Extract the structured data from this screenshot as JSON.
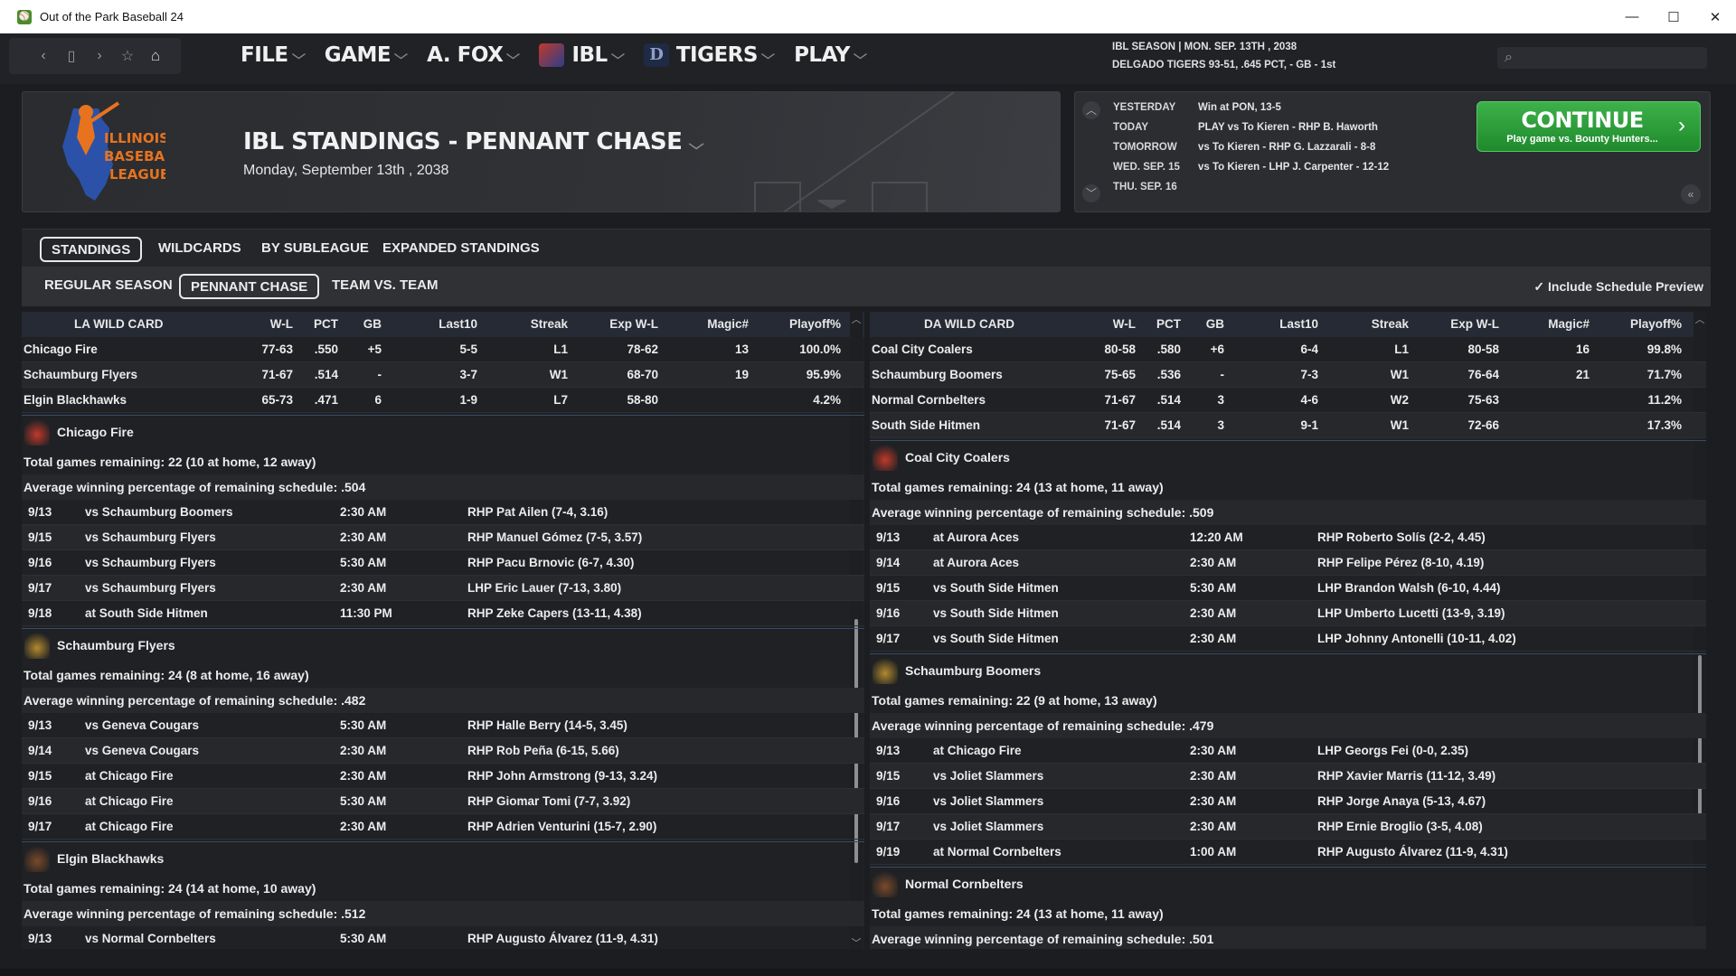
{
  "window": {
    "title": "Out of the Park Baseball 24",
    "min": "—",
    "max": "☐",
    "close": "✕"
  },
  "nav": {
    "menus": [
      {
        "label": "FILE"
      },
      {
        "label": "GAME"
      },
      {
        "label": "A. FOX"
      },
      {
        "label": "IBL"
      },
      {
        "label": "TIGERS"
      },
      {
        "label": "PLAY"
      }
    ],
    "season_line": "IBL SEASON  |  MON. SEP. 13TH , 2038",
    "team_line": "DELGADO TIGERS  93-51, .645 PCT, - GB - 1st",
    "search_placeholder": ""
  },
  "header": {
    "title": "IBL STANDINGS - PENNANT CHASE",
    "date": "Monday, September 13th , 2038",
    "logo_text": [
      "ILLINOIS",
      "BASEBALL",
      "LEAGUE"
    ]
  },
  "schedule": {
    "rows": [
      {
        "day": "YESTERDAY",
        "text": "Win at PON, 13-5"
      },
      {
        "day": "TODAY",
        "text": "PLAY vs To Kieren - RHP B. Haworth"
      },
      {
        "day": "TOMORROW",
        "text": "vs To Kieren - RHP G. Lazzarali - 8-8"
      },
      {
        "day": "WED. SEP. 15",
        "text": "vs To Kieren - LHP J. Carpenter - 12-12"
      },
      {
        "day": "THU. SEP. 16",
        "text": ""
      }
    ],
    "continue_label": "CONTINUE",
    "continue_sub": "Play game vs. Bounty Hunters..."
  },
  "tabs": {
    "primary": [
      "STANDINGS",
      "WILDCARDS",
      "BY SUBLEAGUE",
      "EXPANDED STANDINGS"
    ],
    "secondary": [
      "REGULAR SEASON",
      "PENNANT CHASE",
      "TEAM VS. TEAM"
    ],
    "include_preview": "Include Schedule Preview"
  },
  "columns": [
    "W-L",
    "PCT",
    "GB",
    "Last10",
    "Streak",
    "Exp W-L",
    "Magic#",
    "Playoff%"
  ],
  "left": {
    "title": "LA  WILD CARD",
    "teams": [
      {
        "name": "Chicago Fire",
        "wl": "77-63",
        "pct": ".550",
        "gb": "+5",
        "l10": "5-5",
        "streak": "L1",
        "exp": "78-62",
        "magic": "13",
        "po": "100.0%"
      },
      {
        "name": "Schaumburg Flyers",
        "wl": "71-67",
        "pct": ".514",
        "gb": "-",
        "l10": "3-7",
        "streak": "W1",
        "exp": "68-70",
        "magic": "19",
        "po": "95.9%"
      },
      {
        "name": "Elgin Blackhawks",
        "wl": "65-73",
        "pct": ".471",
        "gb": "6",
        "l10": "1-9",
        "streak": "L7",
        "exp": "58-80",
        "magic": "",
        "po": "4.2%"
      }
    ],
    "details": [
      {
        "team": "Chicago Fire",
        "remaining": "Total games remaining: 22 (10 at home, 12 away)",
        "avg": "Average winning percentage of remaining schedule: .504",
        "games": [
          {
            "date": "9/13",
            "opp": "vs Schaumburg Boomers",
            "time": "2:30 AM",
            "pitcher": "RHP Pat Ailen (7-4, 3.16)"
          },
          {
            "date": "9/15",
            "opp": "vs Schaumburg Flyers",
            "time": "2:30 AM",
            "pitcher": "RHP Manuel Gómez (7-5, 3.57)"
          },
          {
            "date": "9/16",
            "opp": "vs Schaumburg Flyers",
            "time": "5:30 AM",
            "pitcher": "RHP Pacu Brnovic (6-7, 4.30)"
          },
          {
            "date": "9/17",
            "opp": "vs Schaumburg Flyers",
            "time": "2:30 AM",
            "pitcher": "LHP Eric Lauer (7-13, 3.80)"
          },
          {
            "date": "9/18",
            "opp": "at South Side Hitmen",
            "time": "11:30 PM",
            "pitcher": "RHP Zeke Capers (13-11, 4.38)"
          }
        ]
      },
      {
        "team": "Schaumburg Flyers",
        "remaining": "Total games remaining: 24 (8 at home, 16 away)",
        "avg": "Average winning percentage of remaining schedule: .482",
        "games": [
          {
            "date": "9/13",
            "opp": "vs Geneva Cougars",
            "time": "5:30 AM",
            "pitcher": "RHP Halle Berry (14-5, 3.45)"
          },
          {
            "date": "9/14",
            "opp": "vs Geneva Cougars",
            "time": "2:30 AM",
            "pitcher": "RHP Rob Peña (6-15, 5.66)"
          },
          {
            "date": "9/15",
            "opp": "at Chicago Fire",
            "time": "2:30 AM",
            "pitcher": "RHP John Armstrong (9-13, 3.24)"
          },
          {
            "date": "9/16",
            "opp": "at Chicago Fire",
            "time": "5:30 AM",
            "pitcher": "RHP Giomar Tomi (7-7, 3.92)"
          },
          {
            "date": "9/17",
            "opp": "at Chicago Fire",
            "time": "2:30 AM",
            "pitcher": "RHP Adrien Venturini (15-7, 2.90)"
          }
        ]
      },
      {
        "team": "Elgin Blackhawks",
        "remaining": "Total games remaining: 24 (14 at home, 10 away)",
        "avg": "Average winning percentage of remaining schedule: .512",
        "games": [
          {
            "date": "9/13",
            "opp": "vs Normal Cornbelters",
            "time": "5:30 AM",
            "pitcher": "RHP Augusto Álvarez (11-9, 4.31)"
          }
        ]
      }
    ]
  },
  "right": {
    "title": "DA  WILD CARD",
    "teams": [
      {
        "name": "Coal City Coalers",
        "wl": "80-58",
        "pct": ".580",
        "gb": "+6",
        "l10": "6-4",
        "streak": "L1",
        "exp": "80-58",
        "magic": "16",
        "po": "99.8%"
      },
      {
        "name": "Schaumburg Boomers",
        "wl": "75-65",
        "pct": ".536",
        "gb": "-",
        "l10": "7-3",
        "streak": "W1",
        "exp": "76-64",
        "magic": "21",
        "po": "71.7%"
      },
      {
        "name": "Normal Cornbelters",
        "wl": "71-67",
        "pct": ".514",
        "gb": "3",
        "l10": "4-6",
        "streak": "W2",
        "exp": "75-63",
        "magic": "",
        "po": "11.2%"
      },
      {
        "name": "South Side Hitmen",
        "wl": "71-67",
        "pct": ".514",
        "gb": "3",
        "l10": "9-1",
        "streak": "W1",
        "exp": "72-66",
        "magic": "",
        "po": "17.3%"
      }
    ],
    "details": [
      {
        "team": "Coal City Coalers",
        "remaining": "Total games remaining: 24 (13 at home, 11 away)",
        "avg": "Average winning percentage of remaining schedule: .509",
        "games": [
          {
            "date": "9/13",
            "opp": "at Aurora Aces",
            "time": "12:20 AM",
            "pitcher": "RHP Roberto Solís (2-2, 4.45)"
          },
          {
            "date": "9/14",
            "opp": "at Aurora Aces",
            "time": "2:30 AM",
            "pitcher": "RHP Felipe Pérez (8-10, 4.19)"
          },
          {
            "date": "9/15",
            "opp": "vs South Side Hitmen",
            "time": "5:30 AM",
            "pitcher": "LHP Brandon Walsh (6-10, 4.44)"
          },
          {
            "date": "9/16",
            "opp": "vs South Side Hitmen",
            "time": "2:30 AM",
            "pitcher": "LHP Umberto Lucetti (13-9, 3.19)"
          },
          {
            "date": "9/17",
            "opp": "vs South Side Hitmen",
            "time": "2:30 AM",
            "pitcher": "LHP Johnny Antonelli (10-11, 4.02)"
          }
        ]
      },
      {
        "team": "Schaumburg Boomers",
        "remaining": "Total games remaining: 22 (9 at home, 13 away)",
        "avg": "Average winning percentage of remaining schedule: .479",
        "games": [
          {
            "date": "9/13",
            "opp": "at Chicago Fire",
            "time": "2:30 AM",
            "pitcher": "LHP Georgs Fei (0-0, 2.35)"
          },
          {
            "date": "9/15",
            "opp": "vs Joliet Slammers",
            "time": "2:30 AM",
            "pitcher": "RHP Xavier Marris (11-12, 3.49)"
          },
          {
            "date": "9/16",
            "opp": "vs Joliet Slammers",
            "time": "2:30 AM",
            "pitcher": "RHP Jorge Anaya (5-13, 4.67)"
          },
          {
            "date": "9/17",
            "opp": "vs Joliet Slammers",
            "time": "2:30 AM",
            "pitcher": "RHP Ernie Broglio (3-5, 4.08)"
          },
          {
            "date": "9/19",
            "opp": "at Normal Cornbelters",
            "time": "1:00 AM",
            "pitcher": "RHP Augusto Álvarez (11-9, 4.31)"
          }
        ]
      },
      {
        "team": "Normal Cornbelters",
        "remaining": "Total games remaining: 24 (13 at home, 11 away)",
        "avg": "Average winning percentage of remaining schedule: .501",
        "games": []
      }
    ]
  }
}
